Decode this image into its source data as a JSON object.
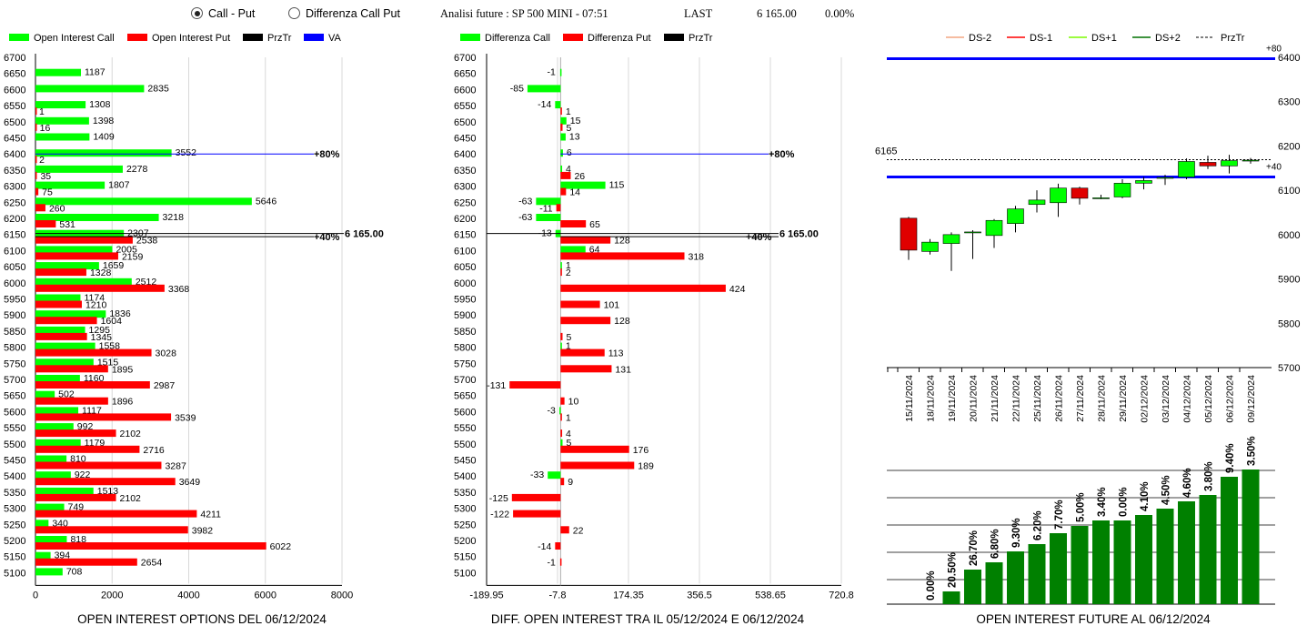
{
  "header": {
    "radio_call_put": "Call - Put",
    "radio_diff": "Differenza Call Put",
    "title": "Analisi future : SP 500 MINI - 07:51",
    "last_label": "LAST",
    "last_value": "6 165.00",
    "change": "0.00%"
  },
  "colors": {
    "green": "#00ff00",
    "red": "#ff0000",
    "blue": "#0000ff",
    "dark_green": "#008000"
  },
  "chart_data": [
    {
      "type": "bar",
      "title": "OPEN INTEREST OPTIONS DEL 06/12/2024",
      "legend": [
        "Open Interest Call",
        "Open Interest Put",
        "PrzTr",
        "VA"
      ],
      "strikes": [
        6700,
        6650,
        6600,
        6550,
        6500,
        6450,
        6400,
        6350,
        6300,
        6250,
        6200,
        6150,
        6100,
        6050,
        6000,
        5950,
        5900,
        5850,
        5800,
        5750,
        5700,
        5650,
        5600,
        5550,
        5500,
        5450,
        5400,
        5350,
        5300,
        5250,
        5200,
        5150,
        5100
      ],
      "series": [
        {
          "name": "Open Interest Call",
          "values": [
            null,
            1187,
            2835,
            1308,
            1398,
            1409,
            3552,
            2278,
            1807,
            5646,
            3218,
            2307,
            2005,
            1659,
            2512,
            1174,
            1836,
            1295,
            1558,
            1515,
            1160,
            502,
            1117,
            992,
            1179,
            810,
            922,
            1513,
            749,
            340,
            818,
            394,
            708
          ]
        },
        {
          "name": "Open Interest Put",
          "values": [
            null,
            null,
            null,
            1,
            16,
            null,
            2,
            35,
            75,
            260,
            531,
            2538,
            2159,
            1328,
            3368,
            1210,
            1604,
            1345,
            3028,
            1895,
            2987,
            1896,
            3539,
            2102,
            2716,
            3287,
            3649,
            2102,
            4211,
            3982,
            6022,
            2654,
            null
          ]
        }
      ],
      "xlim": [
        0,
        8000
      ],
      "xticks": [
        0,
        2000,
        4000,
        6000,
        8000
      ],
      "annotations": [
        {
          "label": "+80%",
          "strike": 6400
        },
        {
          "label": "6 165.00",
          "strike": 6153
        },
        {
          "label": "+40%",
          "strike": 6143
        }
      ]
    },
    {
      "type": "bar",
      "title": "DIFF. OPEN INTEREST TRA IL 05/12/2024 E 06/12/2024",
      "legend": [
        "Differenza Call",
        "Differenza Put",
        "PrzTr"
      ],
      "strikes": [
        6700,
        6650,
        6600,
        6550,
        6500,
        6450,
        6400,
        6350,
        6300,
        6250,
        6200,
        6150,
        6100,
        6050,
        6000,
        5950,
        5900,
        5850,
        5800,
        5750,
        5700,
        5650,
        5600,
        5550,
        5500,
        5450,
        5400,
        5350,
        5300,
        5250,
        5200,
        5150,
        5100
      ],
      "series": [
        {
          "name": "Differenza Call",
          "values": [
            null,
            -1,
            -85,
            -14,
            15,
            13,
            6,
            4,
            115,
            -63,
            -63,
            -13,
            64,
            1,
            null,
            null,
            null,
            null,
            1,
            null,
            null,
            null,
            -3,
            null,
            5,
            null,
            -33,
            null,
            null,
            null,
            null,
            null,
            null
          ]
        },
        {
          "name": "Differenza Put",
          "values": [
            null,
            null,
            null,
            1,
            5,
            null,
            null,
            26,
            14,
            -11,
            65,
            128,
            318,
            2,
            424,
            101,
            128,
            5,
            113,
            131,
            -131,
            10,
            1,
            4,
            176,
            189,
            9,
            -125,
            -122,
            22,
            -14,
            -1,
            null
          ]
        }
      ],
      "xlim": [
        -189.95,
        720.8
      ],
      "xticks": [
        -189.95,
        -7.8,
        174.35,
        356.5,
        538.65,
        720.8
      ],
      "annotations": [
        {
          "label": "+80%",
          "strike": 6400
        },
        {
          "label": "6 165.00",
          "strike": 6153
        },
        {
          "label": "+40%",
          "strike": 6143
        }
      ]
    },
    {
      "type": "candlestick",
      "legend": [
        "DS-2",
        "DS-1",
        "DS+1",
        "DS+2",
        "PrzTr"
      ],
      "dates": [
        "15/11/2024",
        "18/11/2024",
        "19/11/2024",
        "20/11/2024",
        "21/11/2024",
        "22/11/2024",
        "25/11/2024",
        "26/11/2024",
        "27/11/2024",
        "28/11/2024",
        "29/11/2024",
        "02/12/2024",
        "03/12/2024",
        "04/12/2024",
        "05/12/2024",
        "06/12/2024",
        "09/12/2024"
      ],
      "candles": [
        {
          "o": 6037,
          "h": 6040,
          "l": 5943,
          "c": 5965
        },
        {
          "o": 5962,
          "h": 5990,
          "l": 5955,
          "c": 5983
        },
        {
          "o": 5980,
          "h": 6005,
          "l": 5918,
          "c": 6000
        },
        {
          "o": 6004,
          "h": 6010,
          "l": 5945,
          "c": 6006
        },
        {
          "o": 5998,
          "h": 6035,
          "l": 5970,
          "c": 6032
        },
        {
          "o": 6025,
          "h": 6065,
          "l": 6005,
          "c": 6058
        },
        {
          "o": 6068,
          "h": 6100,
          "l": 6050,
          "c": 6078
        },
        {
          "o": 6072,
          "h": 6115,
          "l": 6040,
          "c": 6105
        },
        {
          "o": 6105,
          "h": 6108,
          "l": 6068,
          "c": 6082
        },
        {
          "o": 6082,
          "h": 6090,
          "l": 6080,
          "c": 6083
        },
        {
          "o": 6085,
          "h": 6125,
          "l": 6082,
          "c": 6116
        },
        {
          "o": 6116,
          "h": 6130,
          "l": 6102,
          "c": 6122
        },
        {
          "o": 6127,
          "h": 6135,
          "l": 6112,
          "c": 6129
        },
        {
          "o": 6130,
          "h": 6172,
          "l": 6125,
          "c": 6165
        },
        {
          "o": 6163,
          "h": 6178,
          "l": 6148,
          "c": 6155
        },
        {
          "o": 6155,
          "h": 6180,
          "l": 6138,
          "c": 6167
        },
        {
          "o": 6167,
          "h": 6173,
          "l": 6160,
          "c": 6168
        }
      ],
      "ylim": [
        5700,
        6400
      ],
      "yticks": [
        5700,
        5800,
        5900,
        6000,
        6100,
        6200,
        6300,
        6400
      ],
      "price_label": "6165",
      "price": 6169,
      "levels": [
        {
          "label": "+80",
          "value": 6397
        },
        {
          "label": "+40",
          "value": 6130
        }
      ]
    },
    {
      "type": "bar",
      "title": "OPEN INTEREST FUTURE AL 06/12/2024",
      "values": [
        0.0,
        20.5,
        26.7,
        6.8,
        9.3,
        6.2,
        7.7,
        5.0,
        3.4,
        0.0,
        4.1,
        4.5,
        4.6,
        3.8,
        9.4,
        3.5
      ],
      "labels": [
        "0.00%",
        "20.50%",
        "26.70%",
        "6.80%",
        "9.30%",
        "6.20%",
        "7.70%",
        "5.00%",
        "3.40%",
        "0.00%",
        "4.10%",
        "4.50%",
        "4.60%",
        "3.80%",
        "9.40%",
        "3.50%"
      ],
      "heights": [
        0,
        14,
        38,
        46,
        58,
        66,
        78,
        86,
        92,
        92,
        98,
        105,
        113,
        120,
        140,
        148
      ]
    }
  ]
}
